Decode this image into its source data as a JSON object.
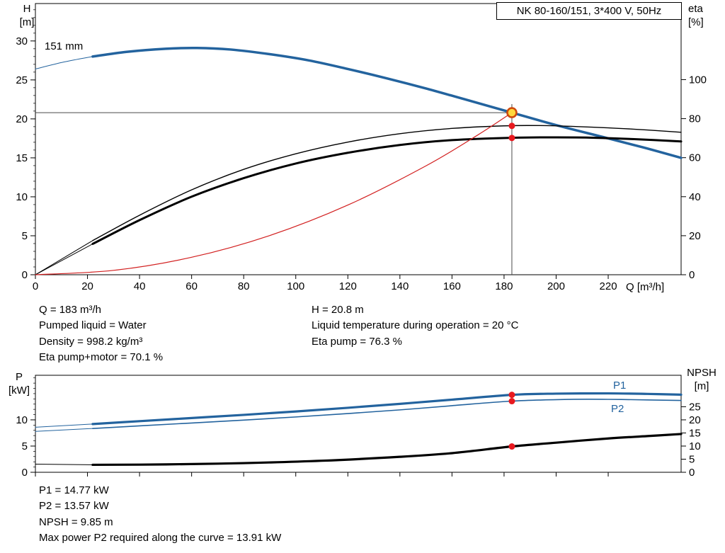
{
  "title_box": "NK 80-160/151, 3*400 V, 50Hz",
  "axis_labels": {
    "h": "H",
    "h_unit": "[m]",
    "eta": "eta",
    "eta_unit": "[%]",
    "q": "Q [m³/h]",
    "p": "P",
    "p_unit": "[kW]",
    "npsh": "NPSH",
    "npsh_unit": "[m]"
  },
  "curve_labels": {
    "impeller": "151 mm",
    "p1": "P1",
    "p2": "P2"
  },
  "duty_info": {
    "col1": [
      "Q = 183 m³/h",
      "Pumped liquid = Water",
      "Density = 998.2 kg/m³",
      "Eta pump+motor = 70.1 %"
    ],
    "col2": [
      "H = 20.8 m",
      "Liquid temperature during operation = 20 °C",
      "Eta pump = 76.3 %"
    ]
  },
  "power_info": [
    "P1 = 14.77 kW",
    "P2 = 13.57 kW",
    "NPSH = 9.85 m",
    "Max power P2 required along the curve = 13.91 kW"
  ],
  "colors": {
    "curve_blue": "#23639e",
    "curve_black": "#000000",
    "curve_red": "#d21f1f",
    "marker_red": "#e8191f",
    "duty_fill": "#ffd83d",
    "duty_ring": "#cf4a0c",
    "crosshair": "#4a4a4a"
  },
  "chart_data": [
    {
      "type": "line",
      "title": "NK 80-160/151, 3*400 V, 50Hz",
      "xlabel": "Q [m³/h]",
      "ylabel_left": "H [m]",
      "ylabel_right": "eta [%]",
      "xlim": [
        0,
        248
      ],
      "ylim_left": [
        0,
        34.8
      ],
      "ylim_right": [
        0,
        139
      ],
      "x_ticks": [
        0,
        20,
        40,
        60,
        80,
        100,
        120,
        140,
        160,
        180,
        200,
        220
      ],
      "x_tick_labels": true,
      "y_ticks_left": [
        0,
        5,
        10,
        15,
        20,
        25,
        30
      ],
      "y_minor_left": 1,
      "y_ticks_right": [
        0,
        20,
        40,
        60,
        80,
        100
      ],
      "legend": "none",
      "series": [
        {
          "name": "head-curve-151mm",
          "axis": "left",
          "color": "#23639e",
          "width": 3.5,
          "points": [
            [
              22,
              28.0
            ],
            [
              35,
              28.6
            ],
            [
              50,
              29.0
            ],
            [
              62,
              29.1
            ],
            [
              75,
              28.9
            ],
            [
              90,
              28.3
            ],
            [
              105,
              27.5
            ],
            [
              120,
              26.4
            ],
            [
              135,
              25.2
            ],
            [
              150,
              23.9
            ],
            [
              165,
              22.5
            ],
            [
              183,
              20.8
            ],
            [
              200,
              19.2
            ],
            [
              220,
              17.5
            ],
            [
              235,
              16.2
            ],
            [
              248,
              15.0
            ]
          ]
        },
        {
          "name": "head-curve-leadin",
          "axis": "left",
          "color": "#23639e",
          "width": 1,
          "points": [
            [
              0,
              26.4
            ],
            [
              11,
              27.3
            ],
            [
              22,
              28.0
            ]
          ]
        },
        {
          "name": "eta-pump-curve",
          "axis": "right",
          "color": "#000000",
          "width": 1.4,
          "points": [
            [
              22,
              17.5
            ],
            [
              40,
              30.5
            ],
            [
              60,
              43.5
            ],
            [
              80,
              54.0
            ],
            [
              100,
              62.0
            ],
            [
              120,
              68.0
            ],
            [
              140,
              72.3
            ],
            [
              160,
              75.0
            ],
            [
              183,
              76.4
            ],
            [
              200,
              76.3
            ],
            [
              220,
              75.3
            ],
            [
              235,
              74.2
            ],
            [
              248,
              73.0
            ]
          ]
        },
        {
          "name": "eta-pump-leadin",
          "axis": "right",
          "color": "#000000",
          "width": 1,
          "points": [
            [
              0,
              0
            ],
            [
              22,
              17.5
            ]
          ]
        },
        {
          "name": "eta-pump-motor-curve",
          "axis": "right",
          "color": "#000000",
          "width": 3,
          "points": [
            [
              22,
              15.8
            ],
            [
              40,
              28.0
            ],
            [
              60,
              40.0
            ],
            [
              80,
              49.5
            ],
            [
              100,
              57.0
            ],
            [
              120,
              62.5
            ],
            [
              140,
              66.5
            ],
            [
              160,
              69.0
            ],
            [
              183,
              70.2
            ],
            [
              200,
              70.4
            ],
            [
              215,
              70.2
            ],
            [
              230,
              69.5
            ],
            [
              248,
              68.3
            ]
          ]
        },
        {
          "name": "eta-pump-motor-leadin",
          "axis": "right",
          "color": "#000000",
          "width": 1,
          "points": [
            [
              0,
              0
            ],
            [
              22,
              15.8
            ]
          ]
        },
        {
          "name": "system-curve",
          "axis": "left",
          "color": "#d21f1f",
          "width": 1.2,
          "points": [
            [
              0,
              0
            ],
            [
              30,
              0.56
            ],
            [
              60,
              2.24
            ],
            [
              90,
              5.03
            ],
            [
              120,
              8.94
            ],
            [
              150,
              13.97
            ],
            [
              170,
              17.95
            ],
            [
              183,
              20.8
            ]
          ]
        }
      ],
      "crosshair": {
        "x": 183,
        "y": 20.8,
        "y_top": 21.9
      },
      "markers": [
        {
          "name": "duty-point",
          "axis": "left",
          "x": 183,
          "y": 20.8,
          "type": "ring"
        },
        {
          "name": "eta-pump-point",
          "axis": "right",
          "x": 183,
          "y": 76.3,
          "type": "dot"
        },
        {
          "name": "eta-pump-motor-point",
          "axis": "right",
          "x": 183,
          "y": 70.1,
          "type": "dot"
        }
      ]
    },
    {
      "type": "line",
      "title": "",
      "xlabel": "",
      "ylabel_left": "P [kW]",
      "ylabel_right": "NPSH [m]",
      "xlim": [
        0,
        248
      ],
      "ylim_left": [
        0,
        18.5
      ],
      "ylim_right": [
        0,
        37
      ],
      "x_ticks": [
        0,
        20,
        40,
        60,
        80,
        100,
        120,
        140,
        160,
        180,
        200,
        220
      ],
      "x_tick_labels": false,
      "y_ticks_left": [
        0,
        5,
        10
      ],
      "y_minor_left": 1,
      "y_ticks_right": [
        0,
        5,
        10,
        15,
        20,
        25
      ],
      "legend": "P1 and P2 labeled at right of curves",
      "series": [
        {
          "name": "p1-curve",
          "axis": "left",
          "color": "#23639e",
          "width": 3.2,
          "points": [
            [
              22,
              9.2
            ],
            [
              40,
              9.75
            ],
            [
              60,
              10.35
            ],
            [
              80,
              10.95
            ],
            [
              100,
              11.6
            ],
            [
              120,
              12.3
            ],
            [
              140,
              13.05
            ],
            [
              160,
              13.85
            ],
            [
              183,
              14.77
            ],
            [
              200,
              15.0
            ],
            [
              220,
              15.05
            ],
            [
              235,
              14.95
            ],
            [
              248,
              14.8
            ]
          ]
        },
        {
          "name": "p1-leadin",
          "axis": "left",
          "color": "#23639e",
          "width": 1,
          "points": [
            [
              0,
              8.6
            ],
            [
              22,
              9.2
            ]
          ]
        },
        {
          "name": "p2-curve",
          "axis": "left",
          "color": "#23639e",
          "width": 1.6,
          "points": [
            [
              22,
              8.35
            ],
            [
              40,
              8.85
            ],
            [
              60,
              9.4
            ],
            [
              80,
              9.95
            ],
            [
              100,
              10.55
            ],
            [
              120,
              11.2
            ],
            [
              140,
              11.9
            ],
            [
              160,
              12.7
            ],
            [
              183,
              13.57
            ],
            [
              205,
              13.9
            ],
            [
              220,
              13.91
            ],
            [
              235,
              13.8
            ],
            [
              248,
              13.7
            ]
          ]
        },
        {
          "name": "p2-leadin",
          "axis": "left",
          "color": "#23639e",
          "width": 1,
          "points": [
            [
              0,
              7.8
            ],
            [
              22,
              8.35
            ]
          ]
        },
        {
          "name": "npsh-curve",
          "axis": "right",
          "color": "#000000",
          "width": 3.2,
          "points": [
            [
              22,
              2.85
            ],
            [
              50,
              3.0
            ],
            [
              80,
              3.5
            ],
            [
              110,
              4.4
            ],
            [
              140,
              5.9
            ],
            [
              160,
              7.3
            ],
            [
              183,
              9.85
            ],
            [
              200,
              11.3
            ],
            [
              220,
              12.9
            ],
            [
              235,
              13.8
            ],
            [
              248,
              14.6
            ]
          ]
        },
        {
          "name": "npsh-leadin",
          "axis": "right",
          "color": "#000000",
          "width": 1,
          "points": [
            [
              0,
              3.1
            ],
            [
              22,
              2.85
            ]
          ]
        }
      ],
      "markers": [
        {
          "name": "p1-point",
          "axis": "left",
          "x": 183,
          "y": 14.77,
          "type": "dot"
        },
        {
          "name": "p2-point",
          "axis": "left",
          "x": 183,
          "y": 13.57,
          "type": "dot"
        },
        {
          "name": "npsh-point",
          "axis": "right",
          "x": 183,
          "y": 9.85,
          "type": "dot"
        }
      ]
    }
  ]
}
